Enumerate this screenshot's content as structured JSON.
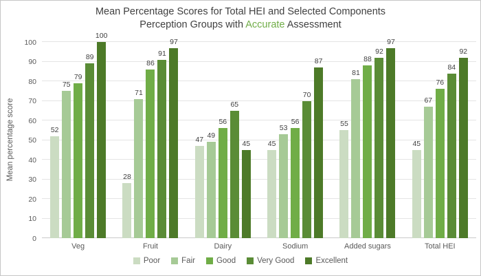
{
  "title": {
    "line1": "Mean Percentage Scores for Total HEI and Selected Components",
    "line2_prefix": "Perception Groups with ",
    "line2_highlight": "Accurate",
    "line2_suffix": " Assessment",
    "color": "#404040",
    "highlight_color": "#70ad47"
  },
  "chart_data": {
    "type": "bar",
    "title": "Mean Percentage Scores for Total HEI and Selected Components Perception Groups with Accurate Assessment",
    "categories": [
      "Veg",
      "Fruit",
      "Dairy",
      "Sodium",
      "Added sugars",
      "Total HEI"
    ],
    "series": [
      {
        "name": "Poor",
        "color": "#cbdcc2",
        "values": [
          52,
          28,
          47,
          45,
          55,
          45
        ]
      },
      {
        "name": "Fair",
        "color": "#a6ca96",
        "values": [
          75,
          71,
          49,
          53,
          81,
          67
        ]
      },
      {
        "name": "Good",
        "color": "#70ad47",
        "values": [
          79,
          86,
          56,
          56,
          88,
          76
        ]
      },
      {
        "name": "Very Good",
        "color": "#5a8c36",
        "values": [
          89,
          91,
          65,
          70,
          92,
          84
        ]
      },
      {
        "name": "Excellent",
        "color": "#4d7a28",
        "values": [
          100,
          97,
          45,
          87,
          97,
          92
        ]
      }
    ],
    "xlabel": "",
    "ylabel": "Mean percentage score",
    "ylim": [
      0,
      100
    ],
    "yticks": [
      0,
      10,
      20,
      30,
      40,
      50,
      60,
      70,
      80,
      90,
      100
    ],
    "grid": true,
    "data_labels": true,
    "legend_position": "bottom",
    "tick_color": "#595959",
    "gridline_color": "#e4e4e4",
    "data_label_color": "#404040"
  }
}
